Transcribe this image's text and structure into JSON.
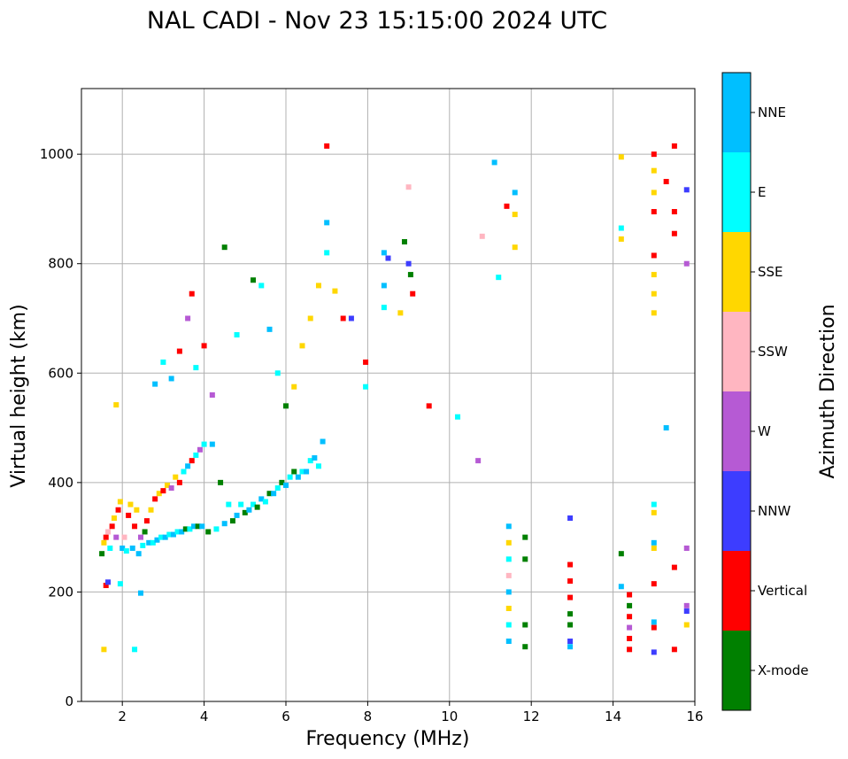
{
  "chart_data": {
    "type": "scatter",
    "title": "NAL CADI - Nov 23 15:15:00 2024 UTC",
    "xlabel": "Frequency (MHz)",
    "ylabel": "Virtual height (km)",
    "xlim": [
      1,
      16
    ],
    "ylim": [
      0,
      1120
    ],
    "xticks": [
      2,
      4,
      6,
      8,
      10,
      12,
      14,
      16
    ],
    "yticks": [
      0,
      200,
      400,
      600,
      800,
      1000
    ],
    "grid": true,
    "colorbar": {
      "label": "Azimuth Direction",
      "categories": [
        {
          "name": "X-mode",
          "color": "#008000"
        },
        {
          "name": "Vertical",
          "color": "#ff0000"
        },
        {
          "name": "NNW",
          "color": "#3d3dff"
        },
        {
          "name": "W",
          "color": "#b65ad4"
        },
        {
          "name": "SSW",
          "color": "#ffb6c1"
        },
        {
          "name": "SSE",
          "color": "#ffd700"
        },
        {
          "name": "E",
          "color": "#00ffff"
        },
        {
          "name": "NNE",
          "color": "#00bfff"
        }
      ]
    },
    "points": [
      [
        1.55,
        95,
        "SSE"
      ],
      [
        1.6,
        212,
        "Vertical"
      ],
      [
        1.65,
        218,
        "NNW"
      ],
      [
        1.85,
        542,
        "SSE"
      ],
      [
        1.95,
        215,
        "E"
      ],
      [
        2.3,
        95,
        "E"
      ],
      [
        2.45,
        198,
        "NNE"
      ],
      [
        1.5,
        270,
        "X-mode"
      ],
      [
        1.55,
        290,
        "SSE"
      ],
      [
        1.6,
        300,
        "Vertical"
      ],
      [
        1.65,
        310,
        "SSW"
      ],
      [
        1.7,
        280,
        "E"
      ],
      [
        1.75,
        320,
        "Vertical"
      ],
      [
        1.8,
        335,
        "SSE"
      ],
      [
        1.85,
        300,
        "W"
      ],
      [
        1.9,
        350,
        "Vertical"
      ],
      [
        1.95,
        365,
        "SSE"
      ],
      [
        2.0,
        280,
        "NNE"
      ],
      [
        2.05,
        300,
        "SSW"
      ],
      [
        2.1,
        275,
        "E"
      ],
      [
        2.15,
        340,
        "Vertical"
      ],
      [
        2.2,
        360,
        "SSE"
      ],
      [
        2.25,
        280,
        "NNE"
      ],
      [
        2.3,
        320,
        "Vertical"
      ],
      [
        2.35,
        350,
        "SSE"
      ],
      [
        2.4,
        270,
        "NNE"
      ],
      [
        2.45,
        300,
        "W"
      ],
      [
        2.5,
        285,
        "E"
      ],
      [
        2.55,
        310,
        "X-mode"
      ],
      [
        2.6,
        330,
        "Vertical"
      ],
      [
        2.65,
        290,
        "NNE"
      ],
      [
        2.7,
        350,
        "SSE"
      ],
      [
        2.75,
        290,
        "E"
      ],
      [
        2.8,
        370,
        "Vertical"
      ],
      [
        2.85,
        295,
        "NNE"
      ],
      [
        2.9,
        380,
        "SSE"
      ],
      [
        2.95,
        300,
        "E"
      ],
      [
        3.0,
        385,
        "Vertical"
      ],
      [
        3.05,
        300,
        "NNE"
      ],
      [
        3.1,
        395,
        "SSE"
      ],
      [
        3.15,
        305,
        "E"
      ],
      [
        3.2,
        390,
        "W"
      ],
      [
        3.25,
        305,
        "NNE"
      ],
      [
        3.3,
        410,
        "SSE"
      ],
      [
        3.35,
        310,
        "E"
      ],
      [
        3.4,
        400,
        "Vertical"
      ],
      [
        3.45,
        310,
        "NNE"
      ],
      [
        3.5,
        420,
        "E"
      ],
      [
        3.55,
        315,
        "X-mode"
      ],
      [
        3.6,
        430,
        "NNE"
      ],
      [
        3.65,
        315,
        "E"
      ],
      [
        3.7,
        440,
        "Vertical"
      ],
      [
        3.75,
        320,
        "NNE"
      ],
      [
        3.8,
        450,
        "E"
      ],
      [
        3.85,
        320,
        "X-mode"
      ],
      [
        3.9,
        460,
        "W"
      ],
      [
        3.95,
        320,
        "NNE"
      ],
      [
        4.0,
        470,
        "E"
      ],
      [
        4.1,
        310,
        "X-mode"
      ],
      [
        4.2,
        470,
        "NNE"
      ],
      [
        4.3,
        315,
        "E"
      ],
      [
        4.4,
        400,
        "X-mode"
      ],
      [
        4.5,
        325,
        "NNE"
      ],
      [
        4.6,
        360,
        "E"
      ],
      [
        4.7,
        330,
        "X-mode"
      ],
      [
        4.8,
        340,
        "NNE"
      ],
      [
        4.9,
        360,
        "E"
      ],
      [
        5.0,
        345,
        "X-mode"
      ],
      [
        5.1,
        350,
        "NNE"
      ],
      [
        5.2,
        360,
        "E"
      ],
      [
        5.3,
        355,
        "X-mode"
      ],
      [
        5.4,
        370,
        "NNE"
      ],
      [
        5.5,
        365,
        "E"
      ],
      [
        5.6,
        380,
        "X-mode"
      ],
      [
        5.7,
        380,
        "NNE"
      ],
      [
        5.8,
        390,
        "E"
      ],
      [
        5.9,
        400,
        "X-mode"
      ],
      [
        6.0,
        395,
        "NNE"
      ],
      [
        6.1,
        410,
        "E"
      ],
      [
        6.2,
        420,
        "X-mode"
      ],
      [
        6.3,
        410,
        "NNE"
      ],
      [
        6.4,
        420,
        "E"
      ],
      [
        6.5,
        420,
        "NNE"
      ],
      [
        6.6,
        440,
        "E"
      ],
      [
        6.7,
        445,
        "NNE"
      ],
      [
        6.8,
        430,
        "E"
      ],
      [
        6.9,
        475,
        "NNE"
      ],
      [
        2.8,
        580,
        "NNE"
      ],
      [
        3.0,
        620,
        "E"
      ],
      [
        3.2,
        590,
        "NNE"
      ],
      [
        3.4,
        640,
        "Vertical"
      ],
      [
        3.6,
        700,
        "W"
      ],
      [
        3.7,
        745,
        "Vertical"
      ],
      [
        3.8,
        610,
        "E"
      ],
      [
        4.0,
        650,
        "Vertical"
      ],
      [
        4.2,
        560,
        "W"
      ],
      [
        4.5,
        830,
        "X-mode"
      ],
      [
        4.8,
        670,
        "E"
      ],
      [
        5.2,
        770,
        "X-mode"
      ],
      [
        5.4,
        760,
        "E"
      ],
      [
        5.6,
        680,
        "NNE"
      ],
      [
        5.8,
        600,
        "E"
      ],
      [
        6.0,
        540,
        "X-mode"
      ],
      [
        6.2,
        575,
        "SSE"
      ],
      [
        6.4,
        650,
        "SSE"
      ],
      [
        6.6,
        700,
        "SSE"
      ],
      [
        6.8,
        760,
        "SSE"
      ],
      [
        7.0,
        1015,
        "Vertical"
      ],
      [
        7.0,
        875,
        "NNE"
      ],
      [
        7.0,
        820,
        "E"
      ],
      [
        7.2,
        750,
        "SSE"
      ],
      [
        7.4,
        700,
        "Vertical"
      ],
      [
        7.6,
        700,
        "NNW"
      ],
      [
        7.95,
        620,
        "Vertical"
      ],
      [
        7.95,
        575,
        "E"
      ],
      [
        8.4,
        820,
        "NNE"
      ],
      [
        8.4,
        760,
        "NNE"
      ],
      [
        8.4,
        720,
        "E"
      ],
      [
        8.5,
        810,
        "NNW"
      ],
      [
        8.8,
        710,
        "SSE"
      ],
      [
        8.9,
        840,
        "X-mode"
      ],
      [
        9.0,
        940,
        "SSW"
      ],
      [
        9.0,
        800,
        "NNW"
      ],
      [
        9.05,
        780,
        "X-mode"
      ],
      [
        9.1,
        745,
        "Vertical"
      ],
      [
        9.5,
        540,
        "Vertical"
      ],
      [
        10.2,
        520,
        "E"
      ],
      [
        10.7,
        440,
        "W"
      ],
      [
        10.8,
        850,
        "SSW"
      ],
      [
        11.1,
        985,
        "NNE"
      ],
      [
        11.2,
        775,
        "E"
      ],
      [
        11.4,
        905,
        "Vertical"
      ],
      [
        11.6,
        930,
        "NNE"
      ],
      [
        11.6,
        890,
        "SSE"
      ],
      [
        11.6,
        830,
        "SSE"
      ],
      [
        11.45,
        320,
        "NNE"
      ],
      [
        11.45,
        290,
        "SSE"
      ],
      [
        11.45,
        260,
        "E"
      ],
      [
        11.45,
        230,
        "SSW"
      ],
      [
        11.45,
        200,
        "NNE"
      ],
      [
        11.45,
        170,
        "SSE"
      ],
      [
        11.45,
        140,
        "E"
      ],
      [
        11.45,
        110,
        "NNE"
      ],
      [
        11.85,
        300,
        "X-mode"
      ],
      [
        11.85,
        260,
        "X-mode"
      ],
      [
        11.85,
        140,
        "X-mode"
      ],
      [
        11.85,
        100,
        "X-mode"
      ],
      [
        12.95,
        335,
        "NNW"
      ],
      [
        12.95,
        250,
        "Vertical"
      ],
      [
        12.95,
        220,
        "Vertical"
      ],
      [
        12.95,
        190,
        "Vertical"
      ],
      [
        12.95,
        160,
        "X-mode"
      ],
      [
        12.95,
        140,
        "X-mode"
      ],
      [
        12.95,
        110,
        "NNW"
      ],
      [
        12.95,
        100,
        "NNE"
      ],
      [
        14.4,
        195,
        "Vertical"
      ],
      [
        14.4,
        175,
        "X-mode"
      ],
      [
        14.4,
        155,
        "Vertical"
      ],
      [
        14.4,
        135,
        "W"
      ],
      [
        14.4,
        115,
        "Vertical"
      ],
      [
        14.4,
        95,
        "Vertical"
      ],
      [
        14.2,
        270,
        "X-mode"
      ],
      [
        14.2,
        210,
        "NNE"
      ],
      [
        14.2,
        995,
        "SSE"
      ],
      [
        14.2,
        865,
        "E"
      ],
      [
        14.2,
        845,
        "SSE"
      ],
      [
        15.0,
        1000,
        "Vertical"
      ],
      [
        15.0,
        970,
        "SSE"
      ],
      [
        15.0,
        930,
        "SSE"
      ],
      [
        15.0,
        895,
        "Vertical"
      ],
      [
        15.0,
        815,
        "Vertical"
      ],
      [
        15.0,
        780,
        "SSE"
      ],
      [
        15.0,
        745,
        "SSE"
      ],
      [
        15.0,
        710,
        "SSE"
      ],
      [
        15.0,
        360,
        "E"
      ],
      [
        15.0,
        345,
        "SSE"
      ],
      [
        15.0,
        290,
        "NNE"
      ],
      [
        15.0,
        280,
        "SSE"
      ],
      [
        15.0,
        215,
        "Vertical"
      ],
      [
        15.0,
        145,
        "NNE"
      ],
      [
        15.0,
        135,
        "Vertical"
      ],
      [
        15.0,
        90,
        "NNW"
      ],
      [
        15.3,
        500,
        "NNE"
      ],
      [
        15.3,
        950,
        "Vertical"
      ],
      [
        15.5,
        1015,
        "Vertical"
      ],
      [
        15.5,
        895,
        "Vertical"
      ],
      [
        15.5,
        855,
        "Vertical"
      ],
      [
        15.5,
        245,
        "Vertical"
      ],
      [
        15.5,
        95,
        "Vertical"
      ],
      [
        15.8,
        935,
        "NNW"
      ],
      [
        15.8,
        800,
        "W"
      ],
      [
        15.8,
        280,
        "W"
      ],
      [
        15.8,
        175,
        "W"
      ],
      [
        15.8,
        165,
        "NNW"
      ],
      [
        15.8,
        140,
        "SSE"
      ]
    ]
  }
}
